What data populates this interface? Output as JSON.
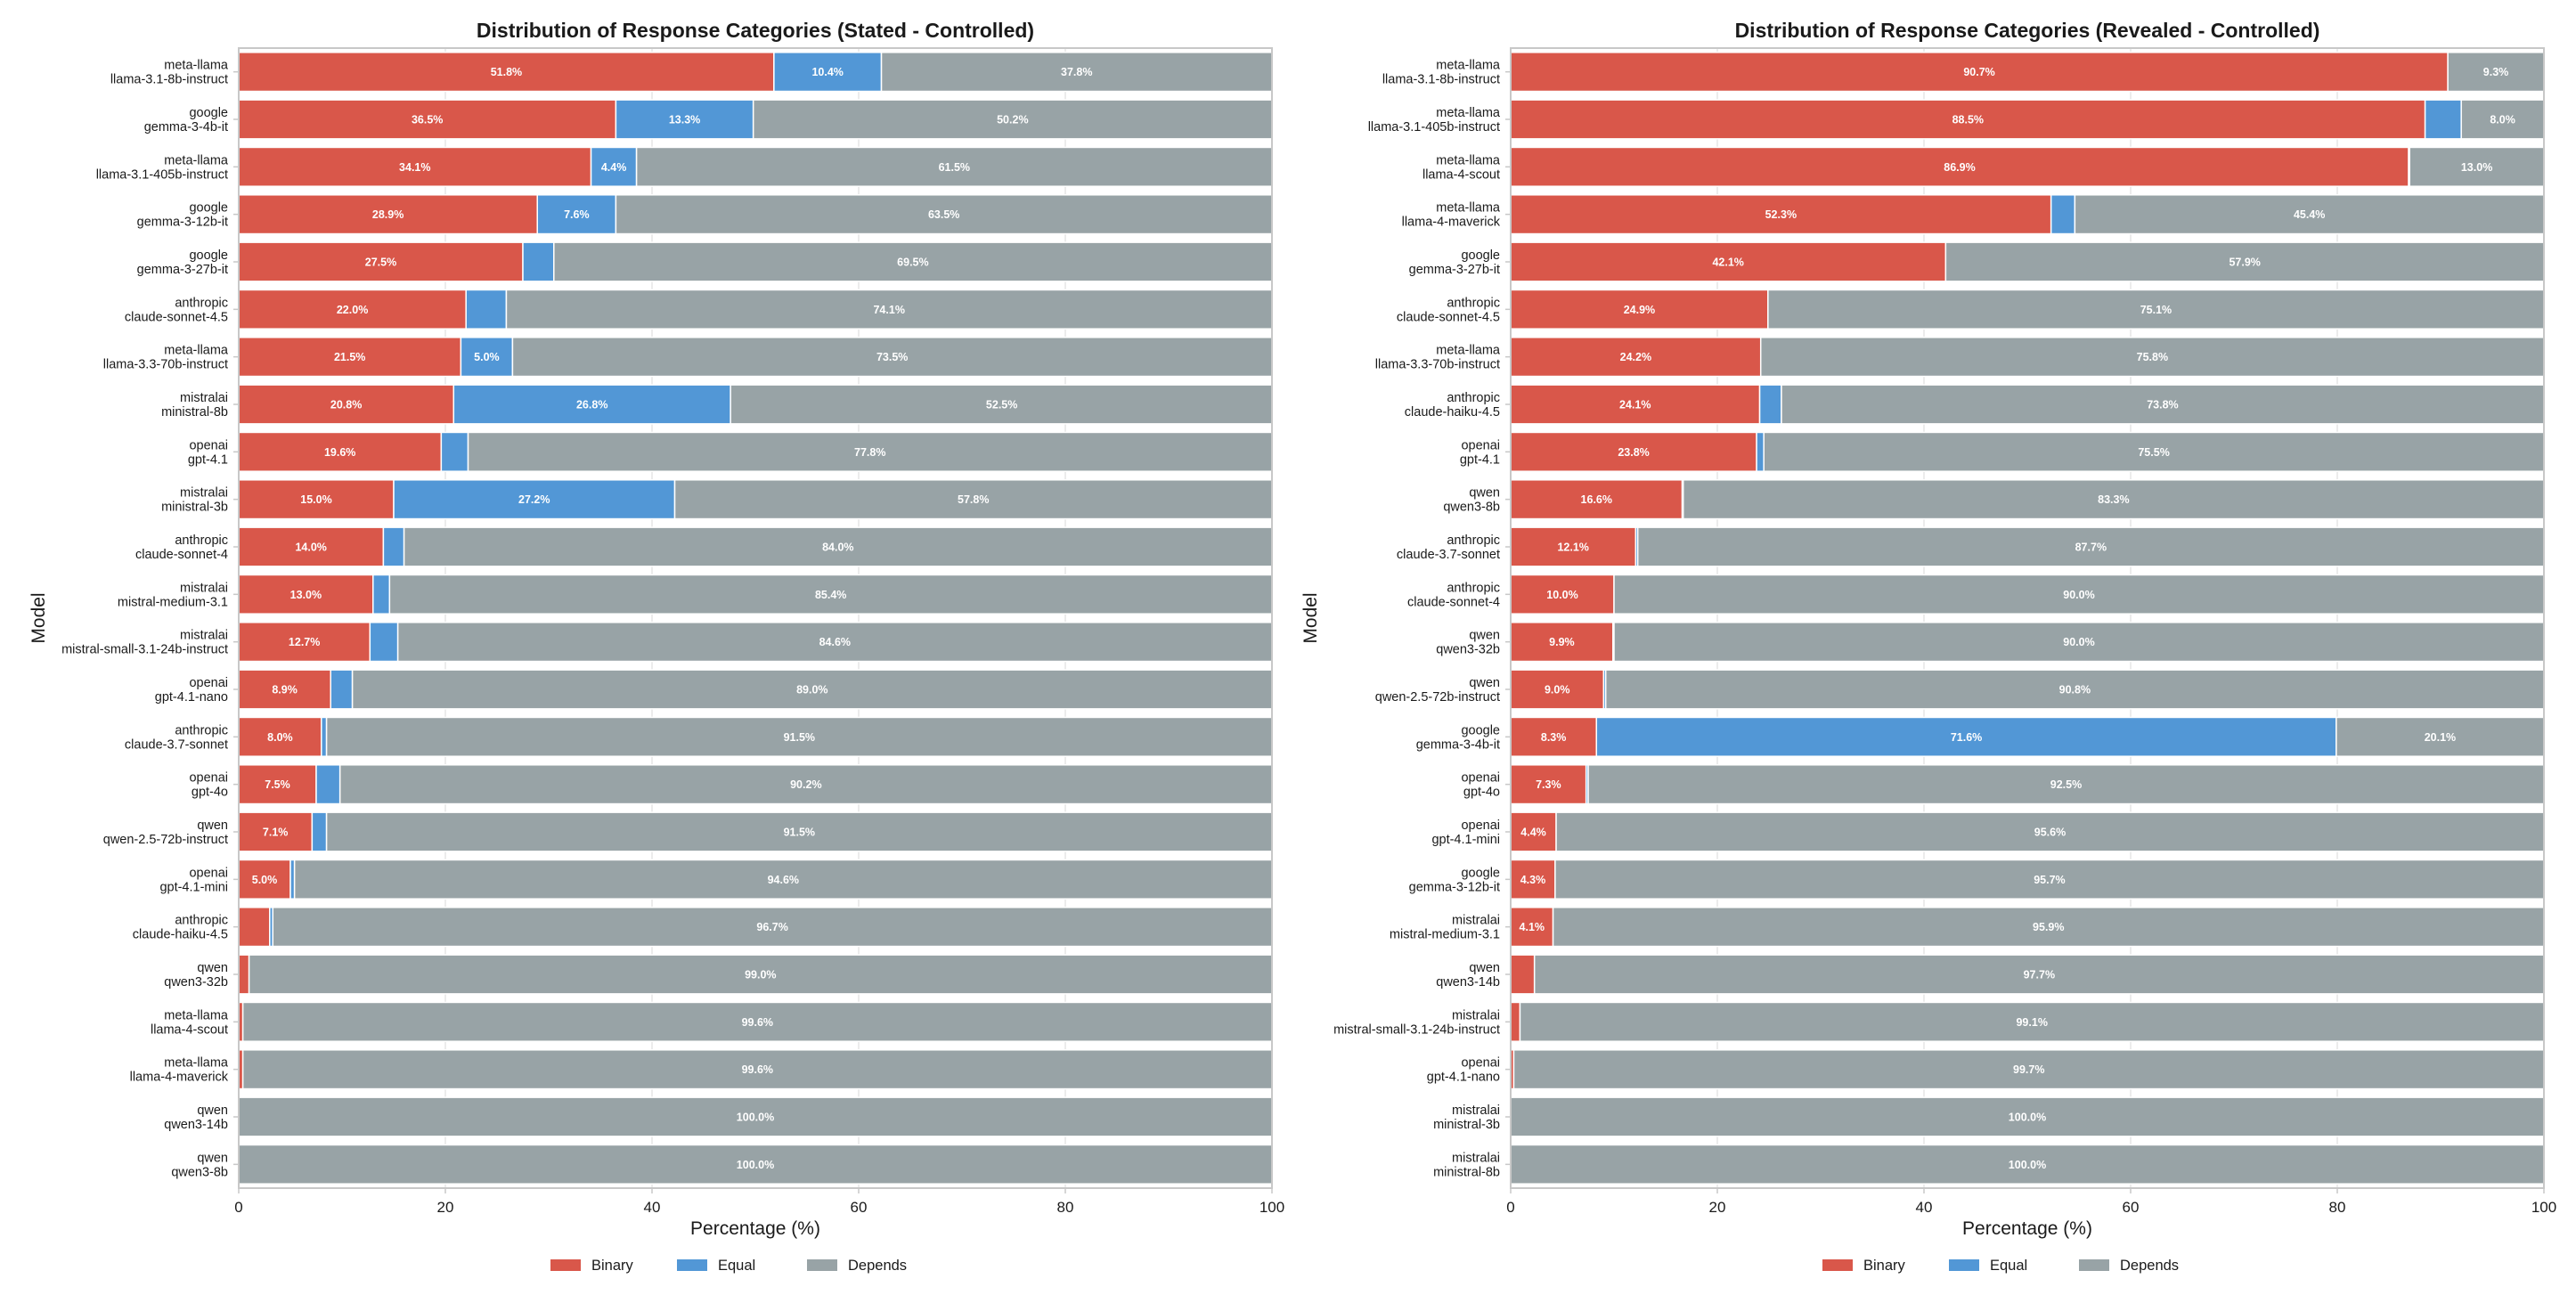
{
  "colors": {
    "binary": "#d9574a",
    "equal": "#5297d6",
    "depends": "#98a3a6",
    "frame": "#c8c8c8",
    "grid": "#e6e6e6",
    "text": "#1a1a1a"
  },
  "legend": {
    "position": "bottom-center",
    "items": [
      "Binary",
      "Equal",
      "Depends"
    ]
  },
  "chart_data": [
    {
      "type": "bar",
      "orientation": "horizontal",
      "stacked": true,
      "title": "Distribution of Response Categories (Stated - Controlled)",
      "xlabel": "Percentage (%)",
      "ylabel": "Model",
      "xlim": [
        0,
        100
      ],
      "xticks": [
        0,
        20,
        40,
        60,
        80,
        100
      ],
      "grid": true,
      "series_names": [
        "Binary",
        "Equal",
        "Depends"
      ],
      "rows": [
        {
          "provider": "meta-llama",
          "model": "llama-3.1-8b-instruct",
          "values": [
            51.8,
            10.4,
            37.8
          ],
          "labels": [
            "51.8%",
            "10.4%",
            "37.8%"
          ]
        },
        {
          "provider": "google",
          "model": "gemma-3-4b-it",
          "values": [
            36.5,
            13.3,
            50.2
          ],
          "labels": [
            "36.5%",
            "13.3%",
            "50.2%"
          ]
        },
        {
          "provider": "meta-llama",
          "model": "llama-3.1-405b-instruct",
          "values": [
            34.1,
            4.4,
            61.5
          ],
          "labels": [
            "34.1%",
            "4.4%",
            "61.5%"
          ]
        },
        {
          "provider": "google",
          "model": "gemma-3-12b-it",
          "values": [
            28.9,
            7.6,
            63.5
          ],
          "labels": [
            "28.9%",
            "7.6%",
            "63.5%"
          ]
        },
        {
          "provider": "google",
          "model": "gemma-3-27b-it",
          "values": [
            27.5,
            3.0,
            69.5
          ],
          "labels": [
            "27.5%",
            "",
            "69.5%"
          ]
        },
        {
          "provider": "anthropic",
          "model": "claude-sonnet-4.5",
          "values": [
            22.0,
            3.9,
            74.1
          ],
          "labels": [
            "22.0%",
            "",
            "74.1%"
          ]
        },
        {
          "provider": "meta-llama",
          "model": "llama-3.3-70b-instruct",
          "values": [
            21.5,
            5.0,
            73.5
          ],
          "labels": [
            "21.5%",
            "5.0%",
            "73.5%"
          ]
        },
        {
          "provider": "mistralai",
          "model": "ministral-8b",
          "values": [
            20.8,
            26.8,
            52.5
          ],
          "labels": [
            "20.8%",
            "26.8%",
            "52.5%"
          ]
        },
        {
          "provider": "openai",
          "model": "gpt-4.1",
          "values": [
            19.6,
            2.6,
            77.8
          ],
          "labels": [
            "19.6%",
            "",
            "77.8%"
          ]
        },
        {
          "provider": "mistralai",
          "model": "ministral-3b",
          "values": [
            15.0,
            27.2,
            57.8
          ],
          "labels": [
            "15.0%",
            "27.2%",
            "57.8%"
          ]
        },
        {
          "provider": "anthropic",
          "model": "claude-sonnet-4",
          "values": [
            14.0,
            2.0,
            84.0
          ],
          "labels": [
            "14.0%",
            "",
            "84.0%"
          ]
        },
        {
          "provider": "mistralai",
          "model": "mistral-medium-3.1",
          "values": [
            13.0,
            1.6,
            85.4
          ],
          "labels": [
            "13.0%",
            "",
            "85.4%"
          ]
        },
        {
          "provider": "mistralai",
          "model": "mistral-small-3.1-24b-instruct",
          "values": [
            12.7,
            2.7,
            84.6
          ],
          "labels": [
            "12.7%",
            "",
            "84.6%"
          ]
        },
        {
          "provider": "openai",
          "model": "gpt-4.1-nano",
          "values": [
            8.9,
            2.1,
            89.0
          ],
          "labels": [
            "8.9%",
            "",
            "89.0%"
          ]
        },
        {
          "provider": "anthropic",
          "model": "claude-3.7-sonnet",
          "values": [
            8.0,
            0.5,
            91.5
          ],
          "labels": [
            "8.0%",
            "",
            "91.5%"
          ]
        },
        {
          "provider": "openai",
          "model": "gpt-4o",
          "values": [
            7.5,
            2.3,
            90.2
          ],
          "labels": [
            "7.5%",
            "",
            "90.2%"
          ]
        },
        {
          "provider": "qwen",
          "model": "qwen-2.5-72b-instruct",
          "values": [
            7.1,
            1.4,
            91.5
          ],
          "labels": [
            "7.1%",
            "",
            "91.5%"
          ]
        },
        {
          "provider": "openai",
          "model": "gpt-4.1-mini",
          "values": [
            5.0,
            0.4,
            94.6
          ],
          "labels": [
            "5.0%",
            "",
            "94.6%"
          ]
        },
        {
          "provider": "anthropic",
          "model": "claude-haiku-4.5",
          "values": [
            3.0,
            0.3,
            96.7
          ],
          "labels": [
            "",
            "",
            "96.7%"
          ]
        },
        {
          "provider": "qwen",
          "model": "qwen3-32b",
          "values": [
            1.0,
            0.0,
            99.0
          ],
          "labels": [
            "",
            "",
            "99.0%"
          ]
        },
        {
          "provider": "meta-llama",
          "model": "llama-4-scout",
          "values": [
            0.4,
            0.0,
            99.6
          ],
          "labels": [
            "",
            "",
            "99.6%"
          ]
        },
        {
          "provider": "meta-llama",
          "model": "llama-4-maverick",
          "values": [
            0.4,
            0.0,
            99.6
          ],
          "labels": [
            "",
            "",
            "99.6%"
          ]
        },
        {
          "provider": "qwen",
          "model": "qwen3-14b",
          "values": [
            0.0,
            0.0,
            100.0
          ],
          "labels": [
            "",
            "",
            "100.0%"
          ]
        },
        {
          "provider": "qwen",
          "model": "qwen3-8b",
          "values": [
            0.0,
            0.0,
            100.0
          ],
          "labels": [
            "",
            "",
            "100.0%"
          ]
        }
      ]
    },
    {
      "type": "bar",
      "orientation": "horizontal",
      "stacked": true,
      "title": "Distribution of Response Categories (Revealed - Controlled)",
      "xlabel": "Percentage (%)",
      "ylabel": "Model",
      "xlim": [
        0,
        100
      ],
      "xticks": [
        0,
        20,
        40,
        60,
        80,
        100
      ],
      "grid": true,
      "series_names": [
        "Binary",
        "Equal",
        "Depends"
      ],
      "rows": [
        {
          "provider": "meta-llama",
          "model": "llama-3.1-8b-instruct",
          "values": [
            90.7,
            0.0,
            9.3
          ],
          "labels": [
            "90.7%",
            "",
            "9.3%"
          ]
        },
        {
          "provider": "meta-llama",
          "model": "llama-3.1-405b-instruct",
          "values": [
            88.5,
            3.5,
            8.0
          ],
          "labels": [
            "88.5%",
            "",
            "8.0%"
          ]
        },
        {
          "provider": "meta-llama",
          "model": "llama-4-scout",
          "values": [
            86.9,
            0.1,
            13.0
          ],
          "labels": [
            "86.9%",
            "",
            "13.0%"
          ]
        },
        {
          "provider": "meta-llama",
          "model": "llama-4-maverick",
          "values": [
            52.3,
            2.3,
            45.4
          ],
          "labels": [
            "52.3%",
            "",
            "45.4%"
          ]
        },
        {
          "provider": "google",
          "model": "gemma-3-27b-it",
          "values": [
            42.1,
            0.0,
            57.9
          ],
          "labels": [
            "42.1%",
            "",
            "57.9%"
          ]
        },
        {
          "provider": "anthropic",
          "model": "claude-sonnet-4.5",
          "values": [
            24.9,
            0.0,
            75.1
          ],
          "labels": [
            "24.9%",
            "",
            "75.1%"
          ]
        },
        {
          "provider": "meta-llama",
          "model": "llama-3.3-70b-instruct",
          "values": [
            24.2,
            0.0,
            75.8
          ],
          "labels": [
            "24.2%",
            "",
            "75.8%"
          ]
        },
        {
          "provider": "anthropic",
          "model": "claude-haiku-4.5",
          "values": [
            24.1,
            2.1,
            73.8
          ],
          "labels": [
            "24.1%",
            "",
            "73.8%"
          ]
        },
        {
          "provider": "openai",
          "model": "gpt-4.1",
          "values": [
            23.8,
            0.7,
            75.5
          ],
          "labels": [
            "23.8%",
            "",
            "75.5%"
          ]
        },
        {
          "provider": "qwen",
          "model": "qwen3-8b",
          "values": [
            16.6,
            0.1,
            83.3
          ],
          "labels": [
            "16.6%",
            "",
            "83.3%"
          ]
        },
        {
          "provider": "anthropic",
          "model": "claude-3.7-sonnet",
          "values": [
            12.1,
            0.2,
            87.7
          ],
          "labels": [
            "12.1%",
            "",
            "87.7%"
          ]
        },
        {
          "provider": "anthropic",
          "model": "claude-sonnet-4",
          "values": [
            10.0,
            0.0,
            90.0
          ],
          "labels": [
            "10.0%",
            "",
            "90.0%"
          ]
        },
        {
          "provider": "qwen",
          "model": "qwen3-32b",
          "values": [
            9.9,
            0.1,
            90.0
          ],
          "labels": [
            "9.9%",
            "",
            "90.0%"
          ]
        },
        {
          "provider": "qwen",
          "model": "qwen-2.5-72b-instruct",
          "values": [
            9.0,
            0.2,
            90.8
          ],
          "labels": [
            "9.0%",
            "",
            "90.8%"
          ]
        },
        {
          "provider": "google",
          "model": "gemma-3-4b-it",
          "values": [
            8.3,
            71.6,
            20.1
          ],
          "labels": [
            "8.3%",
            "71.6%",
            "20.1%"
          ]
        },
        {
          "provider": "openai",
          "model": "gpt-4o",
          "values": [
            7.3,
            0.2,
            92.5
          ],
          "labels": [
            "7.3%",
            "",
            "92.5%"
          ]
        },
        {
          "provider": "openai",
          "model": "gpt-4.1-mini",
          "values": [
            4.4,
            0.0,
            95.6
          ],
          "labels": [
            "4.4%",
            "",
            "95.6%"
          ]
        },
        {
          "provider": "google",
          "model": "gemma-3-12b-it",
          "values": [
            4.3,
            0.0,
            95.7
          ],
          "labels": [
            "4.3%",
            "",
            "95.7%"
          ]
        },
        {
          "provider": "mistralai",
          "model": "mistral-medium-3.1",
          "values": [
            4.1,
            0.0,
            95.9
          ],
          "labels": [
            "4.1%",
            "",
            "95.9%"
          ]
        },
        {
          "provider": "qwen",
          "model": "qwen3-14b",
          "values": [
            2.3,
            0.0,
            97.7
          ],
          "labels": [
            "",
            "",
            "97.7%"
          ]
        },
        {
          "provider": "mistralai",
          "model": "mistral-small-3.1-24b-instruct",
          "values": [
            0.9,
            0.0,
            99.1
          ],
          "labels": [
            "",
            "",
            "99.1%"
          ]
        },
        {
          "provider": "openai",
          "model": "gpt-4.1-nano",
          "values": [
            0.3,
            0.0,
            99.7
          ],
          "labels": [
            "",
            "",
            "99.7%"
          ]
        },
        {
          "provider": "mistralai",
          "model": "ministral-3b",
          "values": [
            0.0,
            0.0,
            100.0
          ],
          "labels": [
            "",
            "",
            "100.0%"
          ]
        },
        {
          "provider": "mistralai",
          "model": "ministral-8b",
          "values": [
            0.0,
            0.0,
            100.0
          ],
          "labels": [
            "",
            "",
            "100.0%"
          ]
        }
      ]
    }
  ]
}
